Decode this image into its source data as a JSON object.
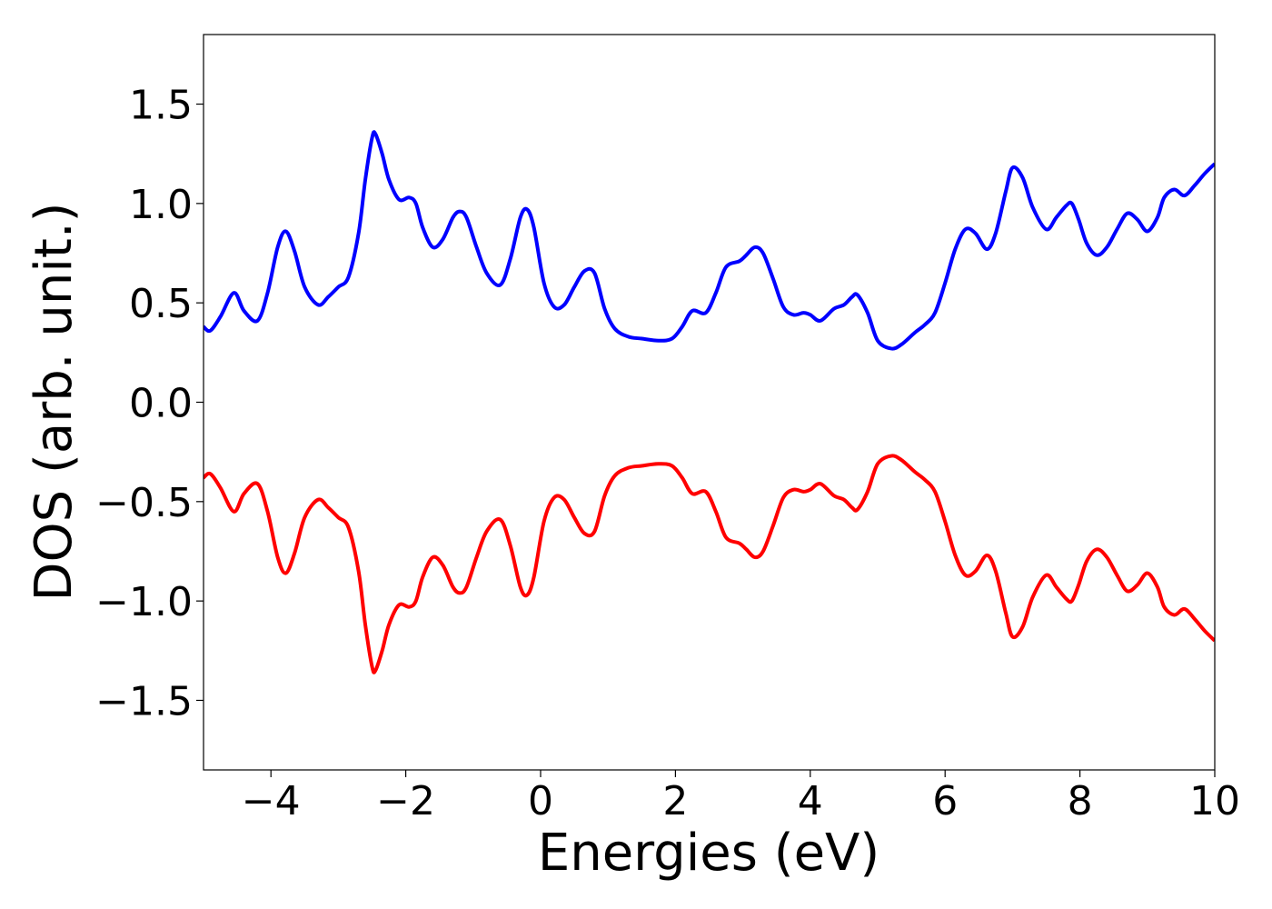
{
  "chart_data": {
    "type": "line",
    "title": "",
    "xlabel": "Energies (eV)",
    "ylabel": "DOS (arb. unit.)",
    "xlim": [
      -5,
      10
    ],
    "ylim": [
      -1.85,
      1.85
    ],
    "x_ticks": [
      -4,
      -2,
      0,
      2,
      4,
      6,
      8,
      10
    ],
    "x_tick_labels": [
      "−4",
      "−2",
      "0",
      "2",
      "4",
      "6",
      "8",
      "10"
    ],
    "y_ticks": [
      -1.5,
      -1.0,
      -0.5,
      0.0,
      0.5,
      1.0,
      1.5
    ],
    "y_tick_labels": [
      "−1.5",
      "−1.0",
      "−0.5",
      "0.0",
      "0.5",
      "1.0",
      "1.5"
    ],
    "grid": false,
    "legend": "none",
    "series": [
      {
        "color": "#0000ff",
        "x": [
          -5.0,
          -4.9,
          -4.75,
          -4.55,
          -4.4,
          -4.2,
          -4.05,
          -3.9,
          -3.78,
          -3.65,
          -3.5,
          -3.3,
          -3.15,
          -3.0,
          -2.85,
          -2.7,
          -2.6,
          -2.5,
          -2.45,
          -2.35,
          -2.25,
          -2.1,
          -1.95,
          -1.85,
          -1.75,
          -1.6,
          -1.45,
          -1.3,
          -1.2,
          -1.1,
          -0.95,
          -0.8,
          -0.6,
          -0.45,
          -0.3,
          -0.2,
          -0.1,
          0.05,
          0.2,
          0.35,
          0.5,
          0.65,
          0.8,
          0.95,
          1.1,
          1.3,
          1.5,
          1.75,
          1.95,
          2.1,
          2.25,
          2.45,
          2.6,
          2.75,
          2.95,
          3.05,
          3.18,
          3.3,
          3.45,
          3.6,
          3.75,
          3.9,
          4.0,
          4.15,
          4.35,
          4.5,
          4.62,
          4.7,
          4.85,
          5.0,
          5.2,
          5.35,
          5.55,
          5.7,
          5.85,
          6.0,
          6.15,
          6.3,
          6.45,
          6.62,
          6.75,
          6.9,
          7.0,
          7.15,
          7.3,
          7.5,
          7.65,
          7.8,
          7.88,
          7.98,
          8.1,
          8.25,
          8.4,
          8.55,
          8.7,
          8.85,
          9.0,
          9.15,
          9.25,
          9.4,
          9.55,
          9.7,
          9.85,
          10.0
        ],
        "y": [
          0.38,
          0.36,
          0.43,
          0.55,
          0.46,
          0.41,
          0.55,
          0.78,
          0.86,
          0.76,
          0.58,
          0.49,
          0.53,
          0.58,
          0.63,
          0.85,
          1.12,
          1.33,
          1.35,
          1.25,
          1.12,
          1.02,
          1.03,
          1.0,
          0.88,
          0.78,
          0.82,
          0.93,
          0.96,
          0.93,
          0.78,
          0.65,
          0.59,
          0.72,
          0.93,
          0.97,
          0.88,
          0.6,
          0.48,
          0.49,
          0.58,
          0.66,
          0.65,
          0.47,
          0.37,
          0.33,
          0.32,
          0.31,
          0.32,
          0.38,
          0.46,
          0.45,
          0.55,
          0.68,
          0.71,
          0.74,
          0.78,
          0.75,
          0.62,
          0.48,
          0.44,
          0.45,
          0.44,
          0.41,
          0.47,
          0.49,
          0.53,
          0.54,
          0.45,
          0.31,
          0.27,
          0.29,
          0.35,
          0.39,
          0.45,
          0.6,
          0.77,
          0.87,
          0.85,
          0.77,
          0.85,
          1.06,
          1.18,
          1.13,
          0.98,
          0.87,
          0.93,
          0.99,
          1.0,
          0.92,
          0.8,
          0.74,
          0.78,
          0.87,
          0.95,
          0.92,
          0.86,
          0.93,
          1.03,
          1.07,
          1.04,
          1.09,
          1.15,
          1.2
        ]
      },
      {
        "color": "#ff0000",
        "x": [
          -5.0,
          -4.9,
          -4.75,
          -4.55,
          -4.4,
          -4.2,
          -4.05,
          -3.9,
          -3.78,
          -3.65,
          -3.5,
          -3.3,
          -3.15,
          -3.0,
          -2.85,
          -2.7,
          -2.6,
          -2.5,
          -2.45,
          -2.35,
          -2.25,
          -2.1,
          -1.95,
          -1.85,
          -1.75,
          -1.6,
          -1.45,
          -1.3,
          -1.2,
          -1.1,
          -0.95,
          -0.8,
          -0.6,
          -0.45,
          -0.3,
          -0.2,
          -0.1,
          0.05,
          0.2,
          0.35,
          0.5,
          0.65,
          0.8,
          0.95,
          1.1,
          1.3,
          1.5,
          1.75,
          1.95,
          2.1,
          2.25,
          2.45,
          2.6,
          2.75,
          2.95,
          3.05,
          3.18,
          3.3,
          3.45,
          3.6,
          3.75,
          3.9,
          4.0,
          4.15,
          4.35,
          4.5,
          4.62,
          4.7,
          4.85,
          5.0,
          5.2,
          5.35,
          5.55,
          5.7,
          5.85,
          6.0,
          6.15,
          6.3,
          6.45,
          6.62,
          6.75,
          6.9,
          7.0,
          7.15,
          7.3,
          7.5,
          7.65,
          7.8,
          7.88,
          7.98,
          8.1,
          8.25,
          8.4,
          8.55,
          8.7,
          8.85,
          9.0,
          9.15,
          9.25,
          9.4,
          9.55,
          9.7,
          9.85,
          10.0
        ],
        "y": [
          -0.38,
          -0.36,
          -0.43,
          -0.55,
          -0.46,
          -0.41,
          -0.55,
          -0.78,
          -0.86,
          -0.76,
          -0.58,
          -0.49,
          -0.53,
          -0.58,
          -0.63,
          -0.85,
          -1.12,
          -1.33,
          -1.35,
          -1.25,
          -1.12,
          -1.02,
          -1.03,
          -1.0,
          -0.88,
          -0.78,
          -0.82,
          -0.93,
          -0.96,
          -0.93,
          -0.78,
          -0.65,
          -0.59,
          -0.72,
          -0.93,
          -0.97,
          -0.88,
          -0.6,
          -0.48,
          -0.49,
          -0.58,
          -0.66,
          -0.65,
          -0.47,
          -0.37,
          -0.33,
          -0.32,
          -0.31,
          -0.32,
          -0.38,
          -0.46,
          -0.45,
          -0.55,
          -0.68,
          -0.71,
          -0.74,
          -0.78,
          -0.75,
          -0.62,
          -0.48,
          -0.44,
          -0.45,
          -0.44,
          -0.41,
          -0.47,
          -0.49,
          -0.53,
          -0.54,
          -0.45,
          -0.31,
          -0.27,
          -0.29,
          -0.35,
          -0.39,
          -0.45,
          -0.6,
          -0.77,
          -0.87,
          -0.85,
          -0.77,
          -0.85,
          -1.06,
          -1.18,
          -1.13,
          -0.98,
          -0.87,
          -0.93,
          -0.99,
          -1.0,
          -0.92,
          -0.8,
          -0.74,
          -0.78,
          -0.87,
          -0.95,
          -0.92,
          -0.86,
          -0.93,
          -1.03,
          -1.07,
          -1.04,
          -1.09,
          -1.15,
          -1.2
        ]
      }
    ]
  }
}
